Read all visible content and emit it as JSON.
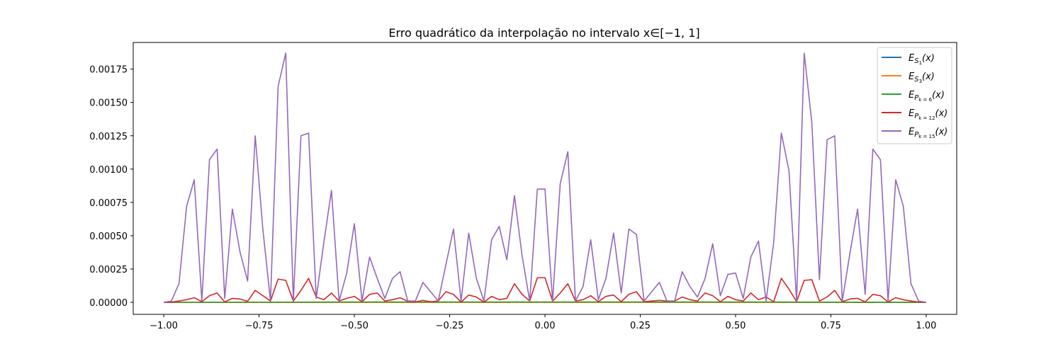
{
  "chart_data": {
    "type": "line",
    "title": "Erro quadrático da interpolação no intervalo x∈[−1, 1]",
    "xlabel": "",
    "ylabel": "",
    "xlim": [
      -1.08,
      1.08
    ],
    "ylim": [
      -9e-05,
      0.00195
    ],
    "x_ticks": [
      -1.0,
      -0.75,
      -0.5,
      -0.25,
      0.0,
      0.25,
      0.5,
      0.75,
      1.0
    ],
    "x_tick_labels": [
      "−1.00",
      "−0.75",
      "−0.50",
      "−0.25",
      "0.00",
      "0.25",
      "0.50",
      "0.75",
      "1.00"
    ],
    "y_ticks": [
      0,
      0.00025,
      0.0005,
      0.00075,
      0.001,
      0.00125,
      0.0015,
      0.00175
    ],
    "y_tick_labels": [
      "0.00000",
      "0.00025",
      "0.00050",
      "0.00075",
      "0.00100",
      "0.00125",
      "0.00150",
      "0.00175"
    ],
    "grid": false,
    "legend_position": "top-right",
    "series": [
      {
        "name": "ES1(x)",
        "legend_main": "E",
        "legend_sub": "S",
        "legend_subsub": "1",
        "legend_tail": "(x)",
        "color": "#1f77b4",
        "x": [
          -1,
          1
        ],
        "values": [
          0,
          0
        ]
      },
      {
        "name": "ES3(x)",
        "legend_main": "E",
        "legend_sub": "S",
        "legend_subsub": "3",
        "legend_tail": "(x)",
        "color": "#ff7f0e",
        "x": [
          -1,
          1
        ],
        "values": [
          0,
          0
        ]
      },
      {
        "name": "EPk=6(x)",
        "legend_main": "E",
        "legend_sub": "P",
        "legend_subsub": "k = 6",
        "legend_tail": "(x)",
        "color": "#2ca02c",
        "x": [
          -1,
          -0.5,
          0,
          0.5,
          1
        ],
        "values": [
          0,
          3e-06,
          3e-06,
          3e-06,
          0
        ]
      },
      {
        "name": "EPk=12(x)",
        "legend_main": "E",
        "legend_sub": "P",
        "legend_subsub": "k = 12",
        "legend_tail": "(x)",
        "color": "#d62728",
        "x": [
          -1,
          -0.98,
          -0.96,
          -0.94,
          -0.92,
          -0.9,
          -0.88,
          -0.86,
          -0.84,
          -0.82,
          -0.8,
          -0.78,
          -0.76,
          -0.74,
          -0.72,
          -0.7,
          -0.68,
          -0.66,
          -0.64,
          -0.62,
          -0.6,
          -0.58,
          -0.56,
          -0.54,
          -0.52,
          -0.5,
          -0.48,
          -0.46,
          -0.44,
          -0.42,
          -0.4,
          -0.38,
          -0.36,
          -0.34,
          -0.32,
          -0.3,
          -0.28,
          -0.26,
          -0.24,
          -0.22,
          -0.2,
          -0.18,
          -0.16,
          -0.14,
          -0.12,
          -0.1,
          -0.08,
          -0.06,
          -0.04,
          -0.02,
          0,
          0.02,
          0.04,
          0.06,
          0.08,
          0.1,
          0.12,
          0.14,
          0.16,
          0.18,
          0.2,
          0.22,
          0.24,
          0.26,
          0.28,
          0.3,
          0.32,
          0.34,
          0.36,
          0.38,
          0.4,
          0.42,
          0.44,
          0.46,
          0.48,
          0.5,
          0.52,
          0.54,
          0.56,
          0.58,
          0.6,
          0.62,
          0.64,
          0.66,
          0.68,
          0.7,
          0.72,
          0.74,
          0.76,
          0.78,
          0.8,
          0.82,
          0.84,
          0.86,
          0.88,
          0.9,
          0.92,
          0.94,
          0.96,
          0.98,
          1
        ],
        "values": [
          0,
          2e-06,
          1e-05,
          2e-05,
          3.5e-05,
          5e-06,
          5e-05,
          7e-05,
          3e-06,
          3e-05,
          2.5e-05,
          8e-06,
          9e-05,
          5e-05,
          1e-05,
          0.000175,
          0.000165,
          1e-05,
          9e-05,
          0.00018,
          4e-05,
          2e-05,
          7e-05,
          1e-05,
          3e-05,
          4.5e-05,
          5e-06,
          6e-05,
          7e-05,
          1e-05,
          2e-05,
          3.5e-05,
          8e-06,
          3e-06,
          1.5e-05,
          5e-06,
          1e-05,
          8e-05,
          6e-05,
          2e-06,
          5.5e-05,
          4e-05,
          2e-06,
          4.5e-05,
          2e-05,
          3e-05,
          0.00014,
          6e-05,
          1e-05,
          0.000185,
          0.000185,
          1e-05,
          7e-05,
          0.00014,
          1e-05,
          2e-05,
          5e-05,
          5e-06,
          4.5e-05,
          5.5e-05,
          5e-06,
          6e-05,
          8e-05,
          5e-06,
          1e-05,
          1.5e-05,
          1e-05,
          1e-05,
          4e-05,
          2e-05,
          1e-05,
          7e-05,
          5e-05,
          5e-06,
          4.5e-05,
          2e-05,
          1e-05,
          7e-05,
          2e-05,
          4e-05,
          5e-06,
          0.00018,
          0.0001,
          5e-06,
          0.000165,
          0.00017,
          1e-05,
          4e-05,
          9e-05,
          5e-06,
          2.5e-05,
          3e-05,
          3e-06,
          6e-05,
          5e-05,
          3e-06,
          3.5e-05,
          2e-05,
          1e-05,
          3e-06,
          0
        ]
      },
      {
        "name": "EPk=15(x)",
        "legend_main": "E",
        "legend_sub": "P",
        "legend_subsub": "k = 15",
        "legend_tail": "(x)",
        "color": "#9467bd",
        "x": [
          -1,
          -0.98,
          -0.96,
          -0.94,
          -0.92,
          -0.9,
          -0.88,
          -0.86,
          -0.84,
          -0.82,
          -0.8,
          -0.78,
          -0.76,
          -0.74,
          -0.72,
          -0.7,
          -0.68,
          -0.66,
          -0.64,
          -0.62,
          -0.6,
          -0.58,
          -0.56,
          -0.54,
          -0.52,
          -0.5,
          -0.48,
          -0.46,
          -0.44,
          -0.42,
          -0.4,
          -0.38,
          -0.36,
          -0.34,
          -0.32,
          -0.3,
          -0.28,
          -0.26,
          -0.24,
          -0.22,
          -0.2,
          -0.18,
          -0.16,
          -0.14,
          -0.12,
          -0.1,
          -0.08,
          -0.06,
          -0.04,
          -0.02,
          0,
          0.02,
          0.04,
          0.06,
          0.08,
          0.1,
          0.12,
          0.14,
          0.16,
          0.18,
          0.2,
          0.22,
          0.24,
          0.26,
          0.28,
          0.3,
          0.32,
          0.34,
          0.36,
          0.38,
          0.4,
          0.42,
          0.44,
          0.46,
          0.48,
          0.5,
          0.52,
          0.54,
          0.56,
          0.58,
          0.6,
          0.62,
          0.64,
          0.66,
          0.68,
          0.7,
          0.72,
          0.74,
          0.76,
          0.78,
          0.8,
          0.82,
          0.84,
          0.86,
          0.88,
          0.9,
          0.92,
          0.94,
          0.96,
          0.98,
          1
        ],
        "values": [
          0,
          1e-05,
          0.00014,
          0.00072,
          0.00092,
          1e-05,
          0.00107,
          0.00115,
          3e-05,
          0.0007,
          0.00038,
          0.00016,
          0.00125,
          0.00055,
          1e-05,
          0.00162,
          0.00187,
          1e-05,
          0.00125,
          0.00127,
          3e-05,
          0.00045,
          0.00084,
          1e-05,
          0.00022,
          0.00059,
          1e-05,
          0.00034,
          0.00018,
          3e-05,
          0.00018,
          0.00023,
          1e-05,
          1e-05,
          0.00015,
          8e-05,
          1e-05,
          0.00028,
          0.00055,
          1e-05,
          0.00052,
          0.00018,
          1e-05,
          0.00047,
          0.00057,
          0.00032,
          0.0008,
          0.00035,
          1e-05,
          0.00085,
          0.00085,
          1e-05,
          0.00089,
          0.00113,
          1e-05,
          0.00012,
          0.00047,
          2e-05,
          0.00018,
          0.00052,
          7e-05,
          0.00055,
          0.00051,
          1e-05,
          8e-05,
          0.00015,
          1e-05,
          1e-05,
          0.00023,
          0.00012,
          4e-05,
          0.00018,
          0.00044,
          5e-05,
          0.00021,
          0.00022,
          3e-05,
          0.00034,
          0.00046,
          1e-05,
          0.00045,
          0.00127,
          0.00099,
          1e-05,
          0.00187,
          0.00135,
          0.00017,
          0.00122,
          0.00125,
          1e-05,
          0.00037,
          0.0007,
          6e-05,
          0.00115,
          0.00107,
          1e-05,
          0.00092,
          0.00072,
          0.00014,
          1e-05,
          0
        ]
      }
    ]
  }
}
